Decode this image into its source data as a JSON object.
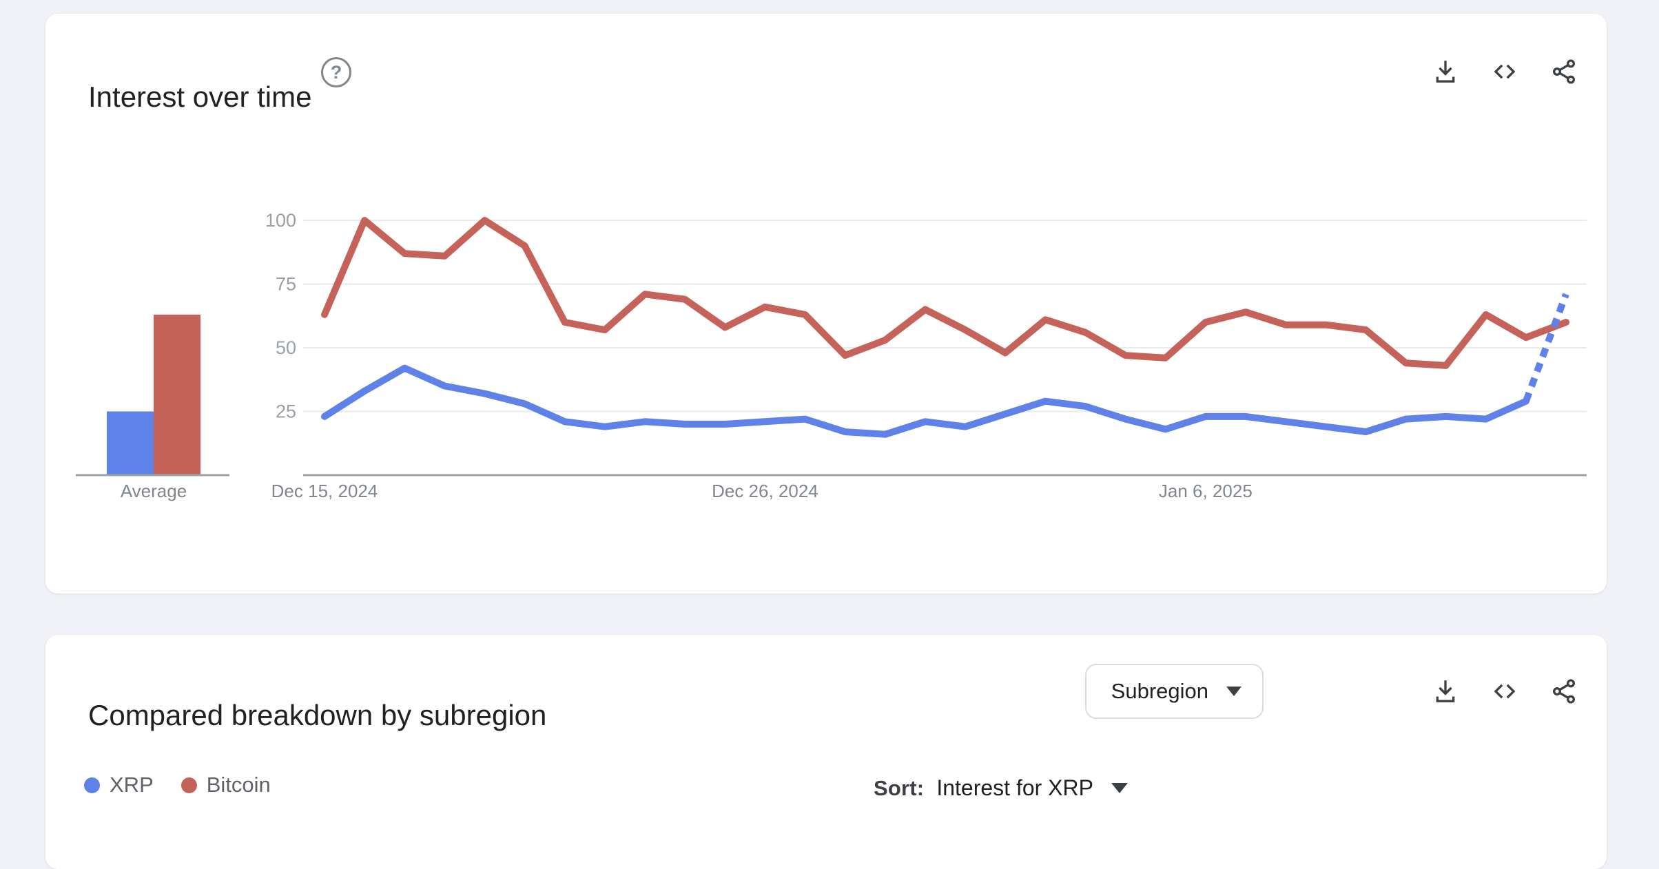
{
  "page": {
    "background_color": "#f0f2f7"
  },
  "interest_card": {
    "title": "Interest over time",
    "help_icon": "question-mark-circle-icon",
    "actions": [
      {
        "name": "download",
        "icon": "download-icon"
      },
      {
        "name": "embed",
        "icon": "code-embed-icon"
      },
      {
        "name": "share",
        "icon": "share-icon"
      }
    ]
  },
  "chart_data": {
    "type": "line",
    "title": "Interest over time",
    "n_points": 32,
    "x_tick_labels": [
      "Dec 15, 2024",
      "Dec 26, 2024",
      "Jan 6, 2025"
    ],
    "x_tick_positions": [
      0,
      11,
      22
    ],
    "y_ticks": [
      25,
      50,
      75,
      100
    ],
    "ylim": [
      0,
      100
    ],
    "grid": true,
    "series": [
      {
        "name": "Bitcoin",
        "color": "#c5635a",
        "dashed_tail_points": 0,
        "values": [
          63,
          100,
          87,
          86,
          100,
          90,
          60,
          57,
          71,
          69,
          58,
          66,
          63,
          47,
          53,
          65,
          57,
          48,
          61,
          56,
          47,
          46,
          60,
          64,
          59,
          59,
          57,
          44,
          43,
          63,
          54,
          60
        ]
      },
      {
        "name": "XRP",
        "color": "#5f82e8",
        "dashed_tail_points": 1,
        "values": [
          23,
          33,
          42,
          35,
          32,
          28,
          21,
          19,
          21,
          20,
          20,
          21,
          22,
          17,
          16,
          21,
          19,
          24,
          29,
          27,
          22,
          18,
          23,
          23,
          21,
          19,
          17,
          22,
          23,
          22,
          29,
          71
        ]
      }
    ],
    "average_panel": {
      "label": "Average",
      "bars": [
        {
          "name": "XRP",
          "value": 25,
          "color": "#5f82e8"
        },
        {
          "name": "Bitcoin",
          "value": 63,
          "color": "#c5635a"
        }
      ]
    },
    "axis_colors": {
      "grid": "#e8eaed",
      "axis_line": "#9aa0a6",
      "y_tick_text": "#9aa0a6",
      "x_tick_text": "#80868b"
    }
  },
  "breakdown_card": {
    "title": "Compared breakdown by subregion",
    "region_dropdown": {
      "value": "Subregion"
    },
    "legend": [
      {
        "label": "XRP",
        "color": "#5f82e8"
      },
      {
        "label": "Bitcoin",
        "color": "#c5635a"
      }
    ],
    "sort_label": "Sort:",
    "sort_value": "Interest for XRP"
  }
}
